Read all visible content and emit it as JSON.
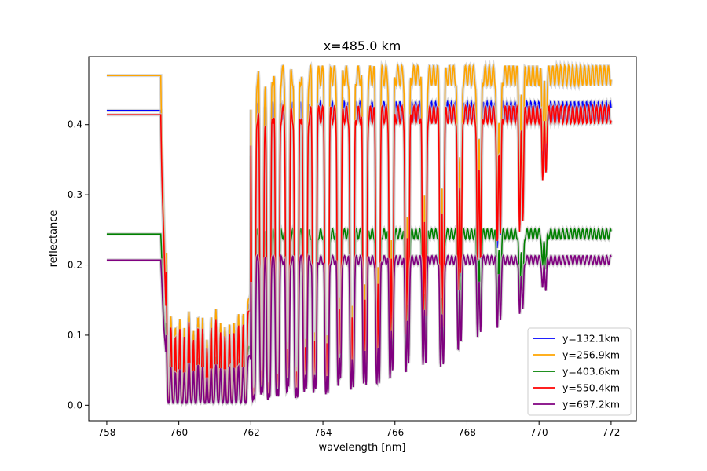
{
  "chart_data": {
    "type": "line",
    "title": "x=485.0 km",
    "xlabel": "wavelength [nm]",
    "ylabel": "reflectance",
    "xlim": [
      757.5,
      772.7
    ],
    "ylim": [
      -0.022,
      0.497
    ],
    "xticks": [
      758,
      760,
      762,
      764,
      766,
      768,
      770,
      772
    ],
    "yticks": [
      0.0,
      0.1,
      0.2,
      0.3,
      0.4
    ],
    "ytick_labels": [
      "0.0",
      "0.1",
      "0.2",
      "0.3",
      "0.4"
    ],
    "grid": false,
    "legend": "lower-right",
    "x_range": [
      758.0,
      772.0
    ],
    "edge": 759.5,
    "series": [
      {
        "name": "y=132.1km",
        "color": "#0000ff",
        "continuum": 0.42,
        "floor": 0.0
      },
      {
        "name": "y=256.9km",
        "color": "#ffa500",
        "continuum": 0.47,
        "floor": 0.0
      },
      {
        "name": "y=403.6km",
        "color": "#008000",
        "continuum": 0.244,
        "floor": 0.0
      },
      {
        "name": "y=550.4km",
        "color": "#ff0000",
        "continuum": 0.414,
        "floor": 0.0
      },
      {
        "name": "y=697.2km",
        "color": "#800080",
        "continuum": 0.207,
        "floor": 0.0
      }
    ],
    "band_color": "#c8c8c8"
  }
}
